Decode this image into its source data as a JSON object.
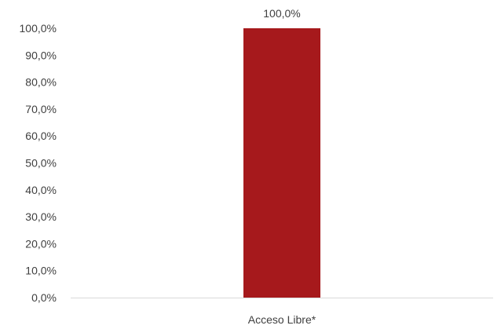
{
  "chart_data": {
    "type": "bar",
    "categories": [
      "Acceso Libre*"
    ],
    "values": [
      100.0
    ],
    "data_labels": [
      "100,0%"
    ],
    "ylim": [
      0,
      100
    ],
    "yticks": [
      0,
      10,
      20,
      30,
      40,
      50,
      60,
      70,
      80,
      90,
      100
    ],
    "ytick_labels": [
      "0,0%",
      "10,0%",
      "20,0%",
      "30,0%",
      "40,0%",
      "50,0%",
      "60,0%",
      "70,0%",
      "80,0%",
      "90,0%",
      "100,0%"
    ],
    "grid": false,
    "legend": "none",
    "bar_color": "#A6191C",
    "axis_color": "#D9D9D9"
  }
}
